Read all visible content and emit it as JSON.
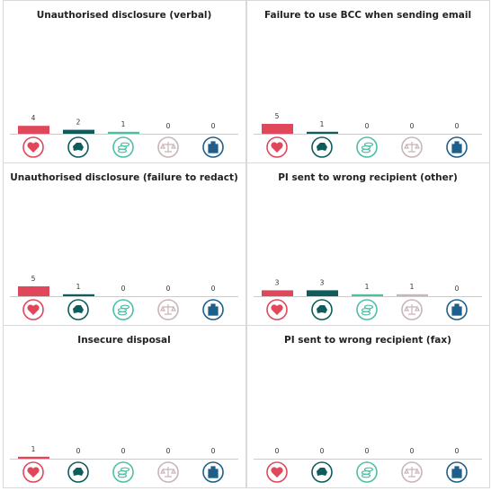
{
  "chart_data": [
    {
      "type": "bar",
      "title": "Unauthorised disclosure (verbal)",
      "categories": [
        null,
        null,
        null,
        null,
        null
      ],
      "values": [
        4,
        2,
        1,
        0,
        0
      ],
      "colors": [
        "#e0475b",
        "#0f5c5c",
        "#4cbfa6",
        "#c9b5b8",
        "#1d5f8a"
      ]
    },
    {
      "type": "bar",
      "title": "Failure to use BCC when sending email",
      "categories": [
        null,
        null,
        null,
        null,
        null
      ],
      "values": [
        5,
        1,
        0,
        0,
        0
      ],
      "colors": [
        "#e0475b",
        "#0f5c5c",
        "#4cbfa6",
        "#c9b5b8",
        "#1d5f8a"
      ]
    },
    {
      "type": "bar",
      "title": "Unauthorised disclosure (failure to redact)",
      "categories": [
        null,
        null,
        null,
        null,
        null
      ],
      "values": [
        5,
        1,
        0,
        0,
        0
      ],
      "colors": [
        "#e0475b",
        "#0f5c5c",
        "#4cbfa6",
        "#c9b5b8",
        "#1d5f8a"
      ]
    },
    {
      "type": "bar",
      "title": "PI sent to wrong recipient (other)",
      "categories": [
        null,
        null,
        null,
        null,
        null
      ],
      "values": [
        3,
        3,
        1,
        1,
        0
      ],
      "colors": [
        "#e0475b",
        "#0f5c5c",
        "#4cbfa6",
        "#c9b5b8",
        "#1d5f8a"
      ]
    },
    {
      "type": "bar",
      "title": "Insecure disposal",
      "categories": [
        null,
        null,
        null,
        null,
        null
      ],
      "values": [
        1,
        0,
        0,
        0,
        0
      ],
      "colors": [
        "#e0475b",
        "#0f5c5c",
        "#4cbfa6",
        "#c9b5b8",
        "#1d5f8a"
      ]
    },
    {
      "type": "bar",
      "title": "PI sent to wrong recipient (fax)",
      "categories": [
        null,
        null,
        null,
        null,
        null
      ],
      "values": [
        0,
        0,
        0,
        0,
        0
      ],
      "colors": [
        "#e0475b",
        "#0f5c5c",
        "#4cbfa6",
        "#c9b5b8",
        "#1d5f8a"
      ]
    }
  ]
}
